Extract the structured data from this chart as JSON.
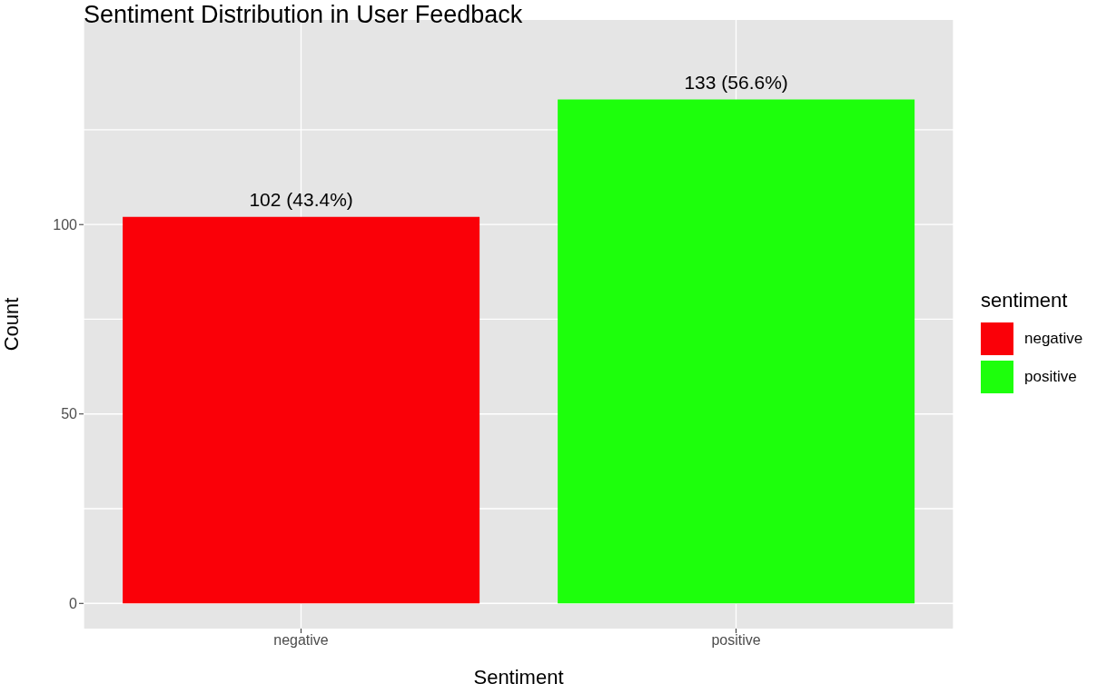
{
  "chart_data": {
    "type": "bar",
    "title": "Sentiment Distribution in User Feedback",
    "xlabel": "Sentiment",
    "ylabel": "Count",
    "legend_title": "sentiment",
    "categories": [
      "negative",
      "positive"
    ],
    "stacked": true,
    "series": [
      {
        "name": "negative",
        "color": "#fa0008",
        "values": [
          102,
          null
        ],
        "value_labels": [
          "102 (43.4%)",
          null
        ]
      },
      {
        "name": "positive",
        "color": "#1dff0c",
        "values": [
          null,
          133
        ],
        "value_labels": [
          null,
          "133 (56.6%)"
        ]
      }
    ],
    "ylim": [
      -6.65,
      154
    ],
    "yticks": [
      0,
      50,
      100
    ],
    "grid": true,
    "legend": "right"
  }
}
